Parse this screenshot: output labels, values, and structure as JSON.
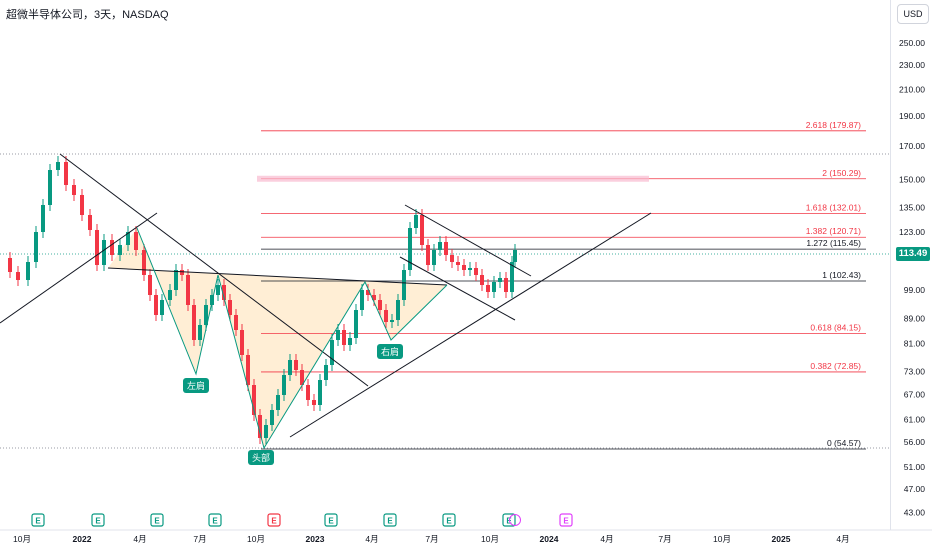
{
  "header": {
    "title": "超微半导体公司，3天，NASDAQ",
    "currency": "USD"
  },
  "current_price": "113.49",
  "colors": {
    "up": "#089981",
    "down": "#f23645",
    "fib_line": "#f23645",
    "pattern_fill": "#ffe0b2",
    "trendline": "#000000"
  },
  "chart_data": {
    "type": "candlestick",
    "symbol_title": "超微半导体公司，3天，NASDAQ",
    "y_axis": {
      "scale": "log",
      "ticks": [
        "250.00",
        "230.00",
        "210.00",
        "190.00",
        "170.00",
        "150.00",
        "135.00",
        "123.00",
        "113.49",
        "99.00",
        "89.00",
        "81.00",
        "73.00",
        "67.00",
        "61.00",
        "56.00",
        "51.00",
        "47.00",
        "43.00"
      ]
    },
    "x_axis": {
      "ticks": [
        "10月",
        "2022",
        "4月",
        "7月",
        "10月",
        "2023",
        "4月",
        "7月",
        "10月",
        "2024",
        "4月",
        "7月",
        "10月",
        "2025",
        "4月"
      ]
    },
    "fib_levels": [
      {
        "label": "2.618 (179.87)",
        "value": 179.87
      },
      {
        "label": "2 (150.29)",
        "value": 150.29
      },
      {
        "label": "1.618 (132.01)",
        "value": 132.01
      },
      {
        "label": "1.382 (120.71)",
        "value": 120.71
      },
      {
        "label": "1.272 (115.45)",
        "value": 115.45
      },
      {
        "label": "1 (102.43)",
        "value": 102.43
      },
      {
        "label": "0.618 (84.15)",
        "value": 84.15
      },
      {
        "label": "0.382 (72.85)",
        "value": 72.85
      },
      {
        "label": "0 (54.57)",
        "value": 54.57
      }
    ],
    "annotations": [
      "左肩",
      "头部",
      "右肩"
    ],
    "event_markers": [
      "E",
      "E",
      "E",
      "E",
      "E",
      "E",
      "E",
      "E",
      "E",
      "E"
    ]
  }
}
